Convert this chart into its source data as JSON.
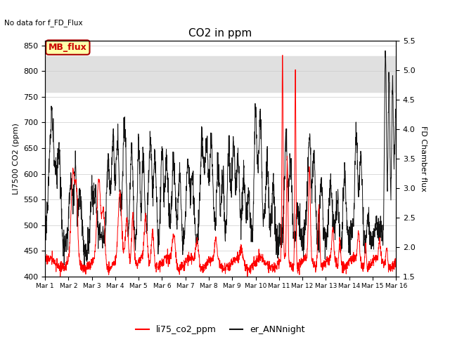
{
  "title": "CO2 in ppm",
  "subtitle": "No data for f_FD_Flux",
  "ylabel_left": "LI7500 CO2 (ppm)",
  "ylabel_right": "FD Chamber flux",
  "ylim_left": [
    400,
    860
  ],
  "ylim_right": [
    1.5,
    5.5
  ],
  "yticks_left": [
    400,
    450,
    500,
    550,
    600,
    650,
    700,
    750,
    800,
    850
  ],
  "yticks_right": [
    1.5,
    2.0,
    2.5,
    3.0,
    3.5,
    4.0,
    4.5,
    5.0,
    5.5
  ],
  "xtick_labels": [
    "Mar 1",
    "Mar 2",
    "Mar 3",
    "Mar 4",
    "Mar 5",
    "Mar 6",
    "Mar 7",
    "Mar 8",
    "Mar 9",
    "Mar 10",
    "Mar 11",
    "Mar 12",
    "Mar 13",
    "Mar 14",
    "Mar 15",
    "Mar 16"
  ],
  "color_red": "#ff0000",
  "color_black": "#111111",
  "color_MB_flux_bg": "#ffffaa",
  "color_MB_flux_border": "#aa0000",
  "color_MB_flux_text": "#cc0000",
  "bg_band_color": "#e0e0e0",
  "legend_label_red": "li75_co2_ppm",
  "legend_label_black": "er_ANNnight",
  "MB_flux_label": "MB_flux",
  "n_points": 2000,
  "band_ylow": 760,
  "band_yhigh": 830
}
